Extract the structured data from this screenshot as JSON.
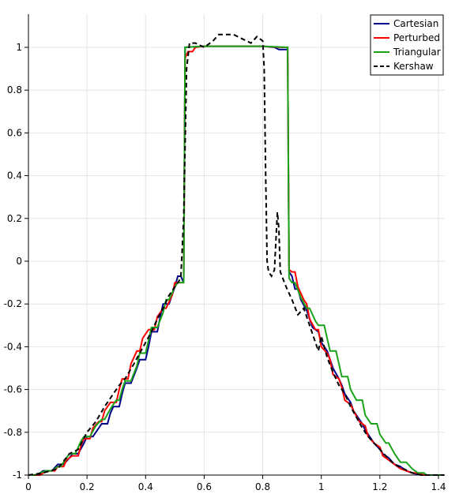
{
  "chart_data": {
    "type": "line",
    "title": "",
    "xlabel": "",
    "ylabel": "",
    "xlim": [
      0,
      1.42
    ],
    "ylim": [
      -1,
      1.15
    ],
    "grid": true,
    "legend_position": "top-right",
    "x_ticks": [
      0,
      0.2,
      0.4,
      0.6,
      0.8,
      1,
      1.2,
      1.4
    ],
    "x_tick_labels": [
      "0",
      "0.2",
      "0.4",
      "0.6",
      "0.8",
      "1",
      "1.2",
      "1.4"
    ],
    "y_ticks": [
      1,
      0.8,
      0.6,
      0.4,
      0.2,
      0,
      -0.2,
      -0.4,
      -0.6,
      -0.8,
      -1
    ],
    "y_tick_labels": [
      "1",
      "0.8",
      "0.6",
      "0.4",
      "0.2",
      "0",
      "-0.2",
      "-0.4",
      "-0.6",
      "-0.8",
      "-1"
    ],
    "series": [
      {
        "name": "Cartesian",
        "color": "#00008b",
        "dash": "solid",
        "points": [
          [
            0,
            -1
          ],
          [
            0.03,
            -1
          ],
          [
            0.05,
            -0.98
          ],
          [
            0.08,
            -0.98
          ],
          [
            0.1,
            -0.95
          ],
          [
            0.12,
            -0.95
          ],
          [
            0.14,
            -0.92
          ],
          [
            0.15,
            -0.9
          ],
          [
            0.17,
            -0.9
          ],
          [
            0.19,
            -0.85
          ],
          [
            0.2,
            -0.82
          ],
          [
            0.22,
            -0.82
          ],
          [
            0.24,
            -0.78
          ],
          [
            0.25,
            -0.76
          ],
          [
            0.27,
            -0.76
          ],
          [
            0.28,
            -0.71
          ],
          [
            0.29,
            -0.68
          ],
          [
            0.31,
            -0.68
          ],
          [
            0.32,
            -0.62
          ],
          [
            0.33,
            -0.57
          ],
          [
            0.35,
            -0.57
          ],
          [
            0.37,
            -0.5
          ],
          [
            0.38,
            -0.46
          ],
          [
            0.4,
            -0.46
          ],
          [
            0.41,
            -0.4
          ],
          [
            0.42,
            -0.33
          ],
          [
            0.44,
            -0.33
          ],
          [
            0.45,
            -0.26
          ],
          [
            0.46,
            -0.2
          ],
          [
            0.48,
            -0.2
          ],
          [
            0.5,
            -0.12
          ],
          [
            0.51,
            -0.07
          ],
          [
            0.52,
            -0.07
          ],
          [
            0.53,
            -0.1
          ],
          [
            0.535,
            1
          ],
          [
            0.6,
            1.005
          ],
          [
            0.7,
            1.005
          ],
          [
            0.8,
            1.005
          ],
          [
            0.84,
            1.0
          ],
          [
            0.855,
            0.99
          ],
          [
            0.885,
            0.99
          ],
          [
            0.89,
            -0.05
          ],
          [
            0.9,
            -0.07
          ],
          [
            0.91,
            -0.13
          ],
          [
            0.92,
            -0.13
          ],
          [
            0.93,
            -0.18
          ],
          [
            0.95,
            -0.23
          ],
          [
            0.96,
            -0.27
          ],
          [
            0.97,
            -0.31
          ],
          [
            0.99,
            -0.33
          ],
          [
            1.0,
            -0.38
          ],
          [
            1.02,
            -0.42
          ],
          [
            1.03,
            -0.46
          ],
          [
            1.04,
            -0.5
          ],
          [
            1.06,
            -0.55
          ],
          [
            1.07,
            -0.58
          ],
          [
            1.08,
            -0.62
          ],
          [
            1.1,
            -0.66
          ],
          [
            1.11,
            -0.7
          ],
          [
            1.12,
            -0.72
          ],
          [
            1.14,
            -0.76
          ],
          [
            1.15,
            -0.79
          ],
          [
            1.17,
            -0.83
          ],
          [
            1.18,
            -0.85
          ],
          [
            1.2,
            -0.88
          ],
          [
            1.21,
            -0.9
          ],
          [
            1.23,
            -0.92
          ],
          [
            1.25,
            -0.95
          ],
          [
            1.27,
            -0.96
          ],
          [
            1.29,
            -0.98
          ],
          [
            1.31,
            -0.99
          ],
          [
            1.34,
            -1
          ],
          [
            1.38,
            -1
          ],
          [
            1.42,
            -1
          ]
        ]
      },
      {
        "name": "Perturbed",
        "color": "#ff0000",
        "dash": "solid",
        "points": [
          [
            0,
            -1
          ],
          [
            0.04,
            -1
          ],
          [
            0.05,
            -0.99
          ],
          [
            0.07,
            -0.98
          ],
          [
            0.09,
            -0.98
          ],
          [
            0.1,
            -0.96
          ],
          [
            0.12,
            -0.96
          ],
          [
            0.13,
            -0.93
          ],
          [
            0.15,
            -0.91
          ],
          [
            0.17,
            -0.91
          ],
          [
            0.18,
            -0.86
          ],
          [
            0.19,
            -0.83
          ],
          [
            0.21,
            -0.83
          ],
          [
            0.22,
            -0.78
          ],
          [
            0.24,
            -0.75
          ],
          [
            0.25,
            -0.75
          ],
          [
            0.26,
            -0.7
          ],
          [
            0.28,
            -0.66
          ],
          [
            0.3,
            -0.66
          ],
          [
            0.31,
            -0.6
          ],
          [
            0.32,
            -0.55
          ],
          [
            0.34,
            -0.55
          ],
          [
            0.35,
            -0.48
          ],
          [
            0.37,
            -0.42
          ],
          [
            0.38,
            -0.42
          ],
          [
            0.39,
            -0.36
          ],
          [
            0.41,
            -0.32
          ],
          [
            0.43,
            -0.32
          ],
          [
            0.44,
            -0.26
          ],
          [
            0.46,
            -0.22
          ],
          [
            0.47,
            -0.22
          ],
          [
            0.49,
            -0.16
          ],
          [
            0.5,
            -0.1
          ],
          [
            0.52,
            -0.1
          ],
          [
            0.53,
            -0.1
          ],
          [
            0.535,
            0.95
          ],
          [
            0.545,
            0.98
          ],
          [
            0.56,
            0.98
          ],
          [
            0.57,
            1.0
          ],
          [
            0.6,
            1.005
          ],
          [
            0.7,
            1.005
          ],
          [
            0.8,
            1.005
          ],
          [
            0.86,
            1.0
          ],
          [
            0.885,
            1.0
          ],
          [
            0.89,
            -0.04
          ],
          [
            0.9,
            -0.05
          ],
          [
            0.91,
            -0.05
          ],
          [
            0.92,
            -0.12
          ],
          [
            0.94,
            -0.18
          ],
          [
            0.95,
            -0.2
          ],
          [
            0.96,
            -0.27
          ],
          [
            0.98,
            -0.32
          ],
          [
            0.99,
            -0.32
          ],
          [
            1.0,
            -0.4
          ],
          [
            1.02,
            -0.43
          ],
          [
            1.03,
            -0.46
          ],
          [
            1.04,
            -0.53
          ],
          [
            1.06,
            -0.55
          ],
          [
            1.07,
            -0.59
          ],
          [
            1.08,
            -0.65
          ],
          [
            1.1,
            -0.67
          ],
          [
            1.11,
            -0.7
          ],
          [
            1.13,
            -0.75
          ],
          [
            1.15,
            -0.77
          ],
          [
            1.16,
            -0.82
          ],
          [
            1.18,
            -0.85
          ],
          [
            1.2,
            -0.87
          ],
          [
            1.21,
            -0.91
          ],
          [
            1.23,
            -0.93
          ],
          [
            1.25,
            -0.95
          ],
          [
            1.27,
            -0.97
          ],
          [
            1.29,
            -0.98
          ],
          [
            1.31,
            -0.99
          ],
          [
            1.33,
            -0.99
          ],
          [
            1.35,
            -1
          ],
          [
            1.42,
            -1
          ]
        ]
      },
      {
        "name": "Triangular",
        "color": "#1aa31a",
        "dash": "solid",
        "points": [
          [
            0,
            -1
          ],
          [
            0.02,
            -1
          ],
          [
            0.04,
            -0.99
          ],
          [
            0.06,
            -0.98
          ],
          [
            0.08,
            -0.98
          ],
          [
            0.1,
            -0.96
          ],
          [
            0.11,
            -0.96
          ],
          [
            0.13,
            -0.92
          ],
          [
            0.14,
            -0.9
          ],
          [
            0.16,
            -0.9
          ],
          [
            0.18,
            -0.84
          ],
          [
            0.19,
            -0.82
          ],
          [
            0.21,
            -0.82
          ],
          [
            0.23,
            -0.77
          ],
          [
            0.25,
            -0.74
          ],
          [
            0.26,
            -0.74
          ],
          [
            0.28,
            -0.69
          ],
          [
            0.3,
            -0.65
          ],
          [
            0.31,
            -0.65
          ],
          [
            0.32,
            -0.6
          ],
          [
            0.33,
            -0.56
          ],
          [
            0.35,
            -0.56
          ],
          [
            0.37,
            -0.49
          ],
          [
            0.38,
            -0.43
          ],
          [
            0.4,
            -0.43
          ],
          [
            0.41,
            -0.37
          ],
          [
            0.42,
            -0.31
          ],
          [
            0.44,
            -0.31
          ],
          [
            0.46,
            -0.24
          ],
          [
            0.47,
            -0.18
          ],
          [
            0.48,
            -0.18
          ],
          [
            0.5,
            -0.12
          ],
          [
            0.51,
            -0.1
          ],
          [
            0.53,
            -0.1
          ],
          [
            0.535,
            1
          ],
          [
            0.6,
            1.005
          ],
          [
            0.8,
            1.005
          ],
          [
            0.885,
            1.0
          ],
          [
            0.89,
            -0.08
          ],
          [
            0.9,
            -0.1
          ],
          [
            0.91,
            -0.1
          ],
          [
            0.93,
            -0.17
          ],
          [
            0.95,
            -0.22
          ],
          [
            0.96,
            -0.22
          ],
          [
            0.98,
            -0.28
          ],
          [
            0.99,
            -0.3
          ],
          [
            1.01,
            -0.3
          ],
          [
            1.02,
            -0.36
          ],
          [
            1.03,
            -0.42
          ],
          [
            1.05,
            -0.42
          ],
          [
            1.06,
            -0.48
          ],
          [
            1.07,
            -0.54
          ],
          [
            1.09,
            -0.54
          ],
          [
            1.1,
            -0.6
          ],
          [
            1.12,
            -0.65
          ],
          [
            1.14,
            -0.65
          ],
          [
            1.15,
            -0.72
          ],
          [
            1.17,
            -0.76
          ],
          [
            1.19,
            -0.76
          ],
          [
            1.2,
            -0.81
          ],
          [
            1.22,
            -0.85
          ],
          [
            1.23,
            -0.85
          ],
          [
            1.25,
            -0.9
          ],
          [
            1.27,
            -0.94
          ],
          [
            1.29,
            -0.94
          ],
          [
            1.31,
            -0.97
          ],
          [
            1.33,
            -0.99
          ],
          [
            1.35,
            -0.99
          ],
          [
            1.36,
            -1
          ],
          [
            1.42,
            -1
          ]
        ]
      },
      {
        "name": "Kershaw",
        "color": "#000000",
        "dash": "dashed",
        "points": [
          [
            0,
            -1
          ],
          [
            0.05,
            -0.99
          ],
          [
            0.1,
            -0.97
          ],
          [
            0.14,
            -0.9
          ],
          [
            0.17,
            -0.88
          ],
          [
            0.2,
            -0.8
          ],
          [
            0.23,
            -0.75
          ],
          [
            0.26,
            -0.68
          ],
          [
            0.29,
            -0.62
          ],
          [
            0.31,
            -0.58
          ],
          [
            0.33,
            -0.55
          ],
          [
            0.36,
            -0.48
          ],
          [
            0.38,
            -0.43
          ],
          [
            0.4,
            -0.38
          ],
          [
            0.42,
            -0.33
          ],
          [
            0.44,
            -0.27
          ],
          [
            0.46,
            -0.22
          ],
          [
            0.48,
            -0.16
          ],
          [
            0.5,
            -0.12
          ],
          [
            0.52,
            -0.08
          ],
          [
            0.53,
            0.2
          ],
          [
            0.54,
            0.9
          ],
          [
            0.55,
            1.02
          ],
          [
            0.57,
            1.02
          ],
          [
            0.6,
            1.0
          ],
          [
            0.63,
            1.03
          ],
          [
            0.65,
            1.06
          ],
          [
            0.7,
            1.06
          ],
          [
            0.73,
            1.04
          ],
          [
            0.76,
            1.02
          ],
          [
            0.78,
            1.05
          ],
          [
            0.8,
            1.03
          ],
          [
            0.805,
            0.9
          ],
          [
            0.81,
            0.4
          ],
          [
            0.815,
            0.0
          ],
          [
            0.82,
            -0.05
          ],
          [
            0.83,
            -0.07
          ],
          [
            0.84,
            -0.04
          ],
          [
            0.845,
            0.1
          ],
          [
            0.85,
            0.23
          ],
          [
            0.855,
            0.15
          ],
          [
            0.86,
            -0.05
          ],
          [
            0.88,
            -0.12
          ],
          [
            0.9,
            -0.18
          ],
          [
            0.92,
            -0.25
          ],
          [
            0.94,
            -0.22
          ],
          [
            0.96,
            -0.3
          ],
          [
            0.98,
            -0.38
          ],
          [
            0.99,
            -0.42
          ],
          [
            1.0,
            -0.35
          ],
          [
            1.02,
            -0.45
          ],
          [
            1.04,
            -0.52
          ],
          [
            1.06,
            -0.58
          ],
          [
            1.08,
            -0.62
          ],
          [
            1.1,
            -0.68
          ],
          [
            1.12,
            -0.73
          ],
          [
            1.14,
            -0.78
          ],
          [
            1.16,
            -0.82
          ],
          [
            1.18,
            -0.85
          ],
          [
            1.2,
            -0.88
          ],
          [
            1.22,
            -0.91
          ],
          [
            1.25,
            -0.95
          ],
          [
            1.28,
            -0.97
          ],
          [
            1.31,
            -0.99
          ],
          [
            1.34,
            -1
          ],
          [
            1.42,
            -1
          ]
        ]
      }
    ]
  }
}
